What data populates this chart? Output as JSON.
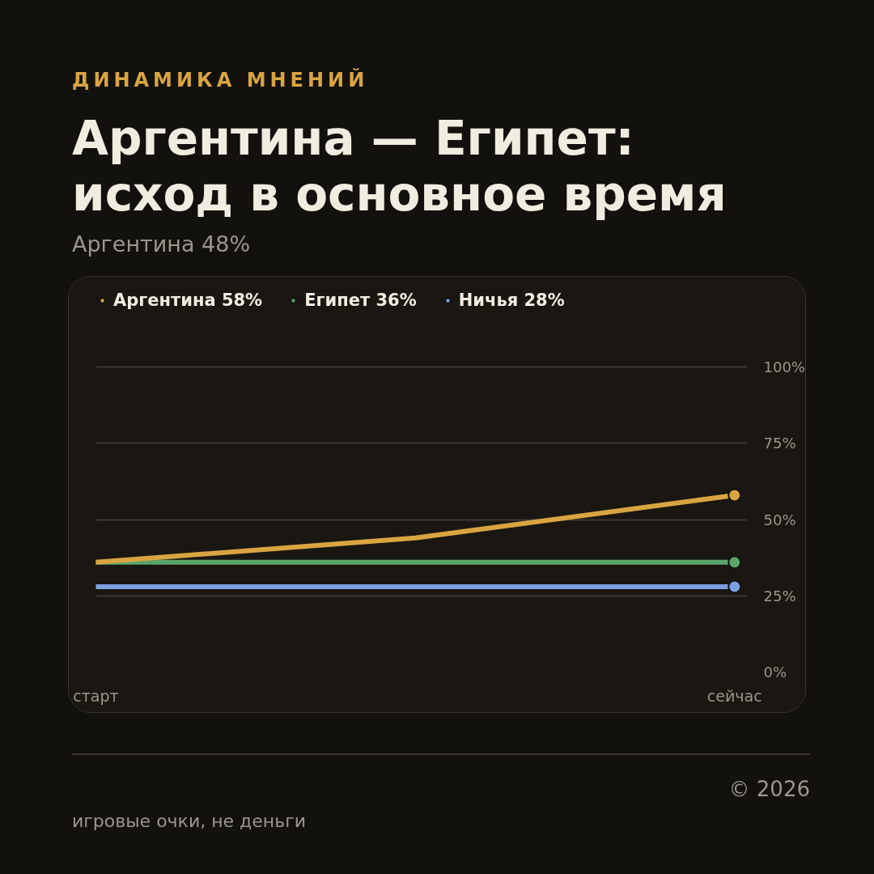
{
  "chart_data": {
    "type": "line",
    "title": "Аргентина — Египет:\nисход в основное время",
    "subtitle": "Аргентина 48%",
    "annotations": [
      "ДИНАМИКА МНЕНИЙ",
      "© 2026",
      "игровые очки, не деньги"
    ],
    "categories": [
      "старт",
      null,
      "сейчас"
    ],
    "series": [
      {
        "name": "Аргентина 58%",
        "color": "#d9a441",
        "values": [
          36,
          44,
          58
        ]
      },
      {
        "name": "Египет 36%",
        "color": "#5aa469",
        "values": [
          36,
          36,
          36
        ]
      },
      {
        "name": "Ничья 28%",
        "color": "#7b9fe0",
        "values": [
          28,
          28,
          28
        ]
      }
    ],
    "ylim": [
      0,
      125
    ],
    "yticks": [
      {
        "value": 0,
        "label": "0%"
      },
      {
        "value": 25,
        "label": "25%"
      },
      {
        "value": 50,
        "label": "50%"
      },
      {
        "value": 75,
        "label": "75%"
      },
      {
        "value": 100,
        "label": "100%"
      }
    ],
    "grid": "y",
    "legend": "top left",
    "line_style": "solid"
  }
}
